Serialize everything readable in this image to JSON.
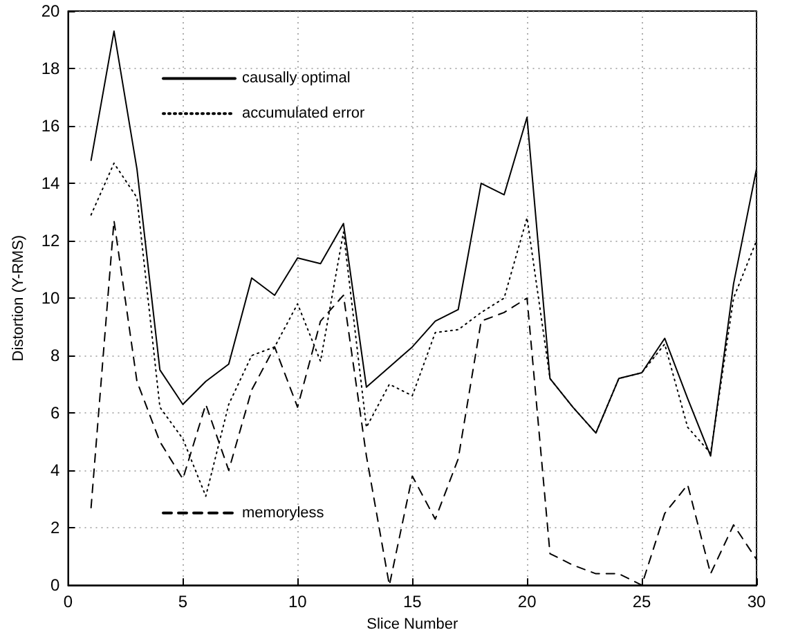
{
  "chart_data": {
    "type": "line",
    "xlabel": "Slice Number",
    "ylabel": "Distortion (Y-RMS)",
    "x": [
      1,
      2,
      3,
      4,
      5,
      6,
      7,
      8,
      9,
      10,
      11,
      12,
      13,
      14,
      15,
      16,
      17,
      18,
      19,
      20,
      21,
      22,
      23,
      24,
      25,
      26,
      27,
      28,
      29,
      30
    ],
    "series": [
      {
        "name": "causally optimal",
        "color": "#000000",
        "line_style": "solid",
        "values": [
          14.8,
          19.3,
          14.5,
          7.5,
          6.3,
          7.1,
          7.7,
          10.7,
          10.1,
          11.4,
          11.2,
          12.6,
          6.9,
          7.6,
          8.3,
          9.2,
          9.6,
          14.0,
          13.6,
          16.3,
          7.2,
          6.2,
          5.3,
          7.2,
          7.4,
          8.6,
          6.5,
          4.5,
          10.5,
          14.5
        ]
      },
      {
        "name": "accumulated error",
        "color": "#000000",
        "line_style": "dotted",
        "values": [
          12.9,
          14.7,
          13.5,
          6.2,
          5.1,
          3.1,
          6.3,
          8.0,
          8.3,
          9.8,
          7.8,
          12.3,
          5.5,
          7.0,
          6.6,
          8.8,
          8.9,
          9.5,
          10.0,
          12.8,
          7.2,
          6.2,
          5.3,
          7.2,
          7.4,
          8.4,
          5.5,
          4.6,
          10.0,
          12.0
        ]
      },
      {
        "name": "memoryless",
        "color": "#000000",
        "line_style": "dashed",
        "values": [
          2.7,
          12.7,
          7.1,
          5.0,
          3.7,
          6.3,
          4.0,
          6.8,
          8.3,
          6.2,
          9.2,
          10.1,
          4.5,
          0.0,
          3.8,
          2.3,
          4.4,
          9.2,
          9.5,
          10.0,
          1.1,
          0.7,
          0.4,
          0.4,
          0.0,
          2.5,
          3.5,
          0.4,
          2.1,
          0.9
        ]
      }
    ],
    "xlim": [
      0,
      30
    ],
    "xticks": [
      0,
      5,
      10,
      15,
      20,
      25,
      30
    ],
    "ylim": [
      0,
      20
    ],
    "yticks": [
      0,
      2,
      4,
      6,
      8,
      10,
      12,
      14,
      16,
      18,
      20
    ],
    "grid": true,
    "legend": "left",
    "marker": "none"
  }
}
